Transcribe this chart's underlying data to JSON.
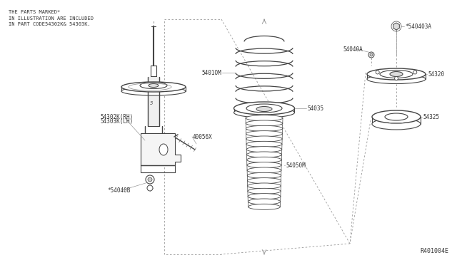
{
  "bg_color": "#ffffff",
  "line_color": "#444444",
  "dashed_color": "#999999",
  "text_color": "#333333",
  "title_note": "THE PARTS MARKED*\nIN ILLUSTRATION ARE INCLUDED\nIN PART CODE54302K& 54303K.",
  "diagram_id": "R401004E",
  "parts": {
    "54302K_RH": "54302K(RH)",
    "54303K_LH": "54303K(LH)",
    "40056X": "40056X",
    "5401OM": "5401OM",
    "54035": "54035",
    "54050M": "54050M",
    "54040A": "54040A",
    "54040B": "*54040B",
    "540403A": "*540403A",
    "54320": "54320",
    "54325": "54325"
  },
  "figsize": [
    6.4,
    3.72
  ],
  "dpi": 100
}
